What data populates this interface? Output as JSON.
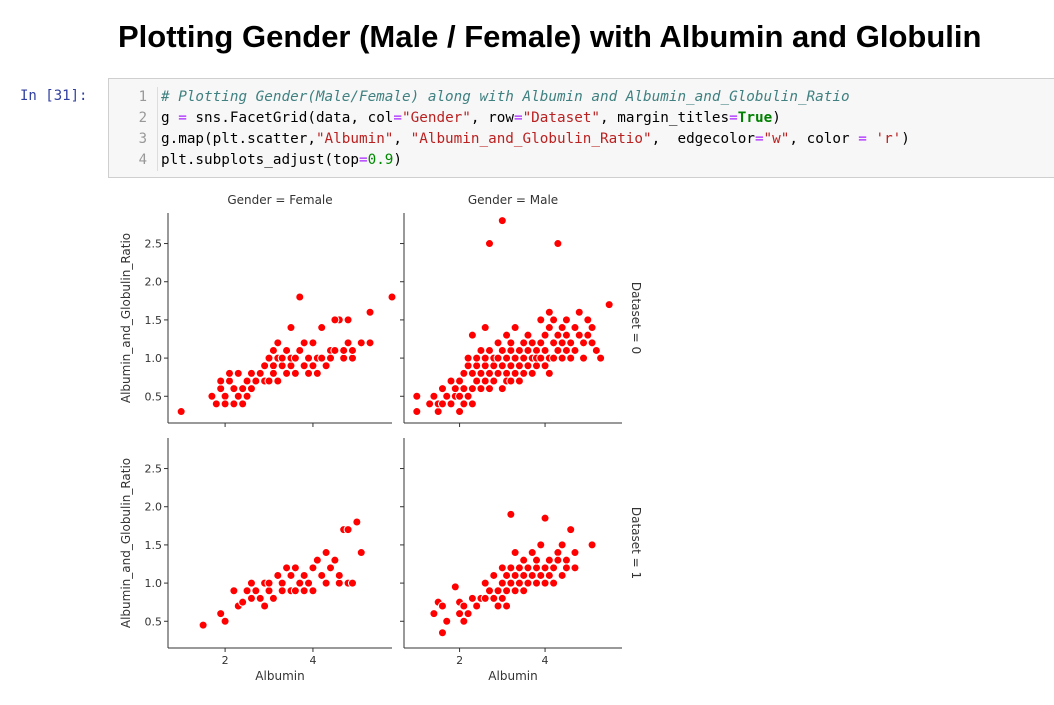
{
  "heading": "Plotting Gender (Male / Female) with Albumin and Globulin",
  "cell": {
    "prompt": "In [31]:",
    "line_numbers": [
      "1",
      "2",
      "3",
      "4"
    ],
    "code": {
      "l1": "# Plotting Gender(Male/Female) along with Albumin and Albumin_and_Globulin_Ratio",
      "l2": {
        "a": "g ",
        "b": "=",
        "c": " sns.FacetGrid(data, col",
        "d": "=",
        "e": "\"Gender\"",
        "f": ", row",
        "g": "=",
        "h": "\"Dataset\"",
        "i": ", margin_titles",
        "j": "=",
        "k": "True",
        "l": ")"
      },
      "l3": {
        "a": "g.map(plt.scatter,",
        "b": "\"Albumin\"",
        "c": ", ",
        "d": "\"Albumin_and_Globulin_Ratio\"",
        "e": ",  edgecolor",
        "f": "=",
        "g": "\"w\"",
        "h": ", color ",
        "i": "=",
        "j": " ",
        "k": "'r'",
        "l": ")"
      },
      "l4": {
        "a": "plt.subplots_adjust(top",
        "b": "=",
        "c": "0.9",
        "d": ")"
      }
    }
  },
  "chart_data": {
    "type": "scatter",
    "marker_color": "#ff0000",
    "edge_color": "#ffffff",
    "xlabel": "Albumin",
    "ylabel": "Albumin_and_Globulin_Ratio",
    "xlim": [
      0.7,
      5.8
    ],
    "ylim": [
      0.15,
      2.9
    ],
    "xticks": [
      "2",
      "4"
    ],
    "yticks": [
      "0.5",
      "1.0",
      "1.5",
      "2.0",
      "2.5"
    ],
    "col_titles": [
      "Gender = Female",
      "Gender = Male"
    ],
    "row_titles": [
      "Dataset = 0",
      "Dataset = 1"
    ],
    "panels": [
      {
        "row": 0,
        "col": 0,
        "points": [
          [
            1.0,
            0.3
          ],
          [
            1.7,
            0.5
          ],
          [
            1.8,
            0.4
          ],
          [
            1.9,
            0.6
          ],
          [
            1.9,
            0.7
          ],
          [
            2.0,
            0.5
          ],
          [
            2.0,
            0.4
          ],
          [
            2.1,
            0.7
          ],
          [
            2.1,
            0.8
          ],
          [
            2.2,
            0.4
          ],
          [
            2.2,
            0.6
          ],
          [
            2.3,
            0.8
          ],
          [
            2.3,
            0.5
          ],
          [
            2.4,
            0.4
          ],
          [
            2.4,
            0.6
          ],
          [
            2.5,
            0.7
          ],
          [
            2.5,
            0.5
          ],
          [
            2.6,
            0.6
          ],
          [
            2.6,
            0.8
          ],
          [
            2.7,
            0.7
          ],
          [
            2.8,
            0.8
          ],
          [
            2.9,
            0.7
          ],
          [
            2.9,
            0.9
          ],
          [
            3.0,
            1.0
          ],
          [
            3.0,
            0.7
          ],
          [
            3.1,
            0.9
          ],
          [
            3.1,
            1.1
          ],
          [
            3.1,
            0.8
          ],
          [
            3.2,
            0.7
          ],
          [
            3.2,
            1.2
          ],
          [
            3.2,
            1.0
          ],
          [
            3.3,
            0.9
          ],
          [
            3.3,
            1.0
          ],
          [
            3.4,
            0.8
          ],
          [
            3.4,
            1.1
          ],
          [
            3.5,
            0.9
          ],
          [
            3.5,
            1.4
          ],
          [
            3.5,
            1.0
          ],
          [
            3.6,
            1.0
          ],
          [
            3.6,
            0.8
          ],
          [
            3.7,
            1.8
          ],
          [
            3.7,
            1.1
          ],
          [
            3.8,
            0.9
          ],
          [
            3.8,
            1.2
          ],
          [
            3.9,
            1.0
          ],
          [
            3.9,
            0.8
          ],
          [
            4.0,
            1.2
          ],
          [
            4.0,
            0.9
          ],
          [
            4.1,
            1.0
          ],
          [
            4.1,
            0.8
          ],
          [
            4.2,
            1.4
          ],
          [
            4.2,
            1.0
          ],
          [
            4.3,
            0.9
          ],
          [
            4.4,
            1.1
          ],
          [
            4.4,
            1.0
          ],
          [
            4.5,
            1.1
          ],
          [
            4.6,
            1.5
          ],
          [
            4.5,
            1.5
          ],
          [
            4.7,
            1.0
          ],
          [
            4.7,
            1.1
          ],
          [
            4.8,
            1.5
          ],
          [
            4.8,
            1.2
          ],
          [
            4.9,
            1.0
          ],
          [
            4.9,
            1.1
          ],
          [
            5.1,
            1.2
          ],
          [
            5.3,
            1.2
          ],
          [
            5.3,
            1.6
          ],
          [
            5.8,
            1.8
          ]
        ]
      },
      {
        "row": 0,
        "col": 1,
        "points": [
          [
            1.0,
            0.5
          ],
          [
            1.0,
            0.3
          ],
          [
            1.3,
            0.4
          ],
          [
            1.4,
            0.5
          ],
          [
            1.5,
            0.3
          ],
          [
            1.5,
            0.4
          ],
          [
            1.6,
            0.6
          ],
          [
            1.6,
            0.4
          ],
          [
            1.7,
            0.5
          ],
          [
            1.8,
            0.7
          ],
          [
            1.8,
            0.4
          ],
          [
            1.9,
            0.5
          ],
          [
            1.9,
            0.6
          ],
          [
            2.0,
            0.3
          ],
          [
            2.0,
            0.5
          ],
          [
            2.0,
            0.7
          ],
          [
            2.1,
            0.6
          ],
          [
            2.1,
            0.4
          ],
          [
            2.1,
            0.8
          ],
          [
            2.2,
            0.5
          ],
          [
            2.2,
            0.9
          ],
          [
            2.2,
            1.0
          ],
          [
            2.3,
            0.6
          ],
          [
            2.3,
            0.8
          ],
          [
            2.3,
            1.3
          ],
          [
            2.3,
            0.4
          ],
          [
            2.4,
            0.7
          ],
          [
            2.4,
            0.9
          ],
          [
            2.4,
            1.0
          ],
          [
            2.5,
            0.6
          ],
          [
            2.5,
            0.8
          ],
          [
            2.5,
            1.1
          ],
          [
            2.6,
            0.7
          ],
          [
            2.6,
            0.9
          ],
          [
            2.6,
            1.0
          ],
          [
            2.6,
            1.4
          ],
          [
            2.7,
            0.8
          ],
          [
            2.7,
            1.1
          ],
          [
            2.7,
            0.6
          ],
          [
            2.7,
            2.5
          ],
          [
            2.8,
            0.9
          ],
          [
            2.8,
            1.0
          ],
          [
            2.8,
            0.7
          ],
          [
            2.9,
            1.2
          ],
          [
            2.9,
            0.8
          ],
          [
            2.9,
            1.0
          ],
          [
            3.0,
            0.9
          ],
          [
            3.0,
            1.1
          ],
          [
            3.0,
            0.6
          ],
          [
            3.0,
            2.8
          ],
          [
            3.1,
            1.0
          ],
          [
            3.1,
            0.8
          ],
          [
            3.1,
            1.3
          ],
          [
            3.1,
            0.7
          ],
          [
            3.2,
            0.9
          ],
          [
            3.2,
            1.1
          ],
          [
            3.2,
            1.2
          ],
          [
            3.2,
            0.7
          ],
          [
            3.3,
            1.0
          ],
          [
            3.3,
            0.8
          ],
          [
            3.3,
            1.4
          ],
          [
            3.4,
            0.9
          ],
          [
            3.4,
            1.1
          ],
          [
            3.4,
            0.7
          ],
          [
            3.5,
            1.0
          ],
          [
            3.5,
            1.2
          ],
          [
            3.5,
            0.8
          ],
          [
            3.6,
            1.1
          ],
          [
            3.6,
            0.9
          ],
          [
            3.6,
            1.3
          ],
          [
            3.7,
            1.0
          ],
          [
            3.7,
            0.8
          ],
          [
            3.7,
            1.2
          ],
          [
            3.8,
            1.1
          ],
          [
            3.8,
            0.9
          ],
          [
            3.8,
            1.0
          ],
          [
            3.9,
            1.5
          ],
          [
            3.9,
            1.2
          ],
          [
            3.9,
            1.0
          ],
          [
            4.0,
            1.3
          ],
          [
            4.0,
            1.1
          ],
          [
            4.0,
            0.9
          ],
          [
            4.1,
            1.4
          ],
          [
            4.1,
            1.0
          ],
          [
            4.1,
            0.8
          ],
          [
            4.1,
            1.6
          ],
          [
            4.2,
            1.2
          ],
          [
            4.2,
            1.5
          ],
          [
            4.2,
            1.0
          ],
          [
            4.3,
            1.3
          ],
          [
            4.3,
            1.1
          ],
          [
            4.3,
            2.5
          ],
          [
            4.4,
            1.4
          ],
          [
            4.4,
            1.0
          ],
          [
            4.4,
            1.2
          ],
          [
            4.5,
            1.5
          ],
          [
            4.5,
            1.1
          ],
          [
            4.5,
            1.3
          ],
          [
            4.6,
            1.2
          ],
          [
            4.6,
            1.0
          ],
          [
            4.7,
            1.4
          ],
          [
            4.7,
            1.1
          ],
          [
            4.8,
            1.3
          ],
          [
            4.8,
            1.6
          ],
          [
            4.9,
            1.2
          ],
          [
            4.9,
            1.0
          ],
          [
            5.0,
            1.5
          ],
          [
            5.0,
            1.3
          ],
          [
            5.1,
            1.4
          ],
          [
            5.1,
            1.2
          ],
          [
            5.2,
            1.1
          ],
          [
            5.3,
            1.0
          ],
          [
            5.5,
            1.7
          ]
        ]
      },
      {
        "row": 1,
        "col": 0,
        "points": [
          [
            1.5,
            0.45
          ],
          [
            1.9,
            0.6
          ],
          [
            2.0,
            0.5
          ],
          [
            2.2,
            0.9
          ],
          [
            2.3,
            0.7
          ],
          [
            2.4,
            0.75
          ],
          [
            2.5,
            0.9
          ],
          [
            2.6,
            1.0
          ],
          [
            2.6,
            0.8
          ],
          [
            2.7,
            0.9
          ],
          [
            2.8,
            0.8
          ],
          [
            2.9,
            1.0
          ],
          [
            2.9,
            0.7
          ],
          [
            3.0,
            0.9
          ],
          [
            3.0,
            1.0
          ],
          [
            3.1,
            0.8
          ],
          [
            3.2,
            1.1
          ],
          [
            3.3,
            1.0
          ],
          [
            3.3,
            0.9
          ],
          [
            3.4,
            1.2
          ],
          [
            3.5,
            1.1
          ],
          [
            3.5,
            0.9
          ],
          [
            3.6,
            1.2
          ],
          [
            3.6,
            0.9
          ],
          [
            3.7,
            1.0
          ],
          [
            3.8,
            1.1
          ],
          [
            3.8,
            0.9
          ],
          [
            3.9,
            1.0
          ],
          [
            4.0,
            1.2
          ],
          [
            4.0,
            0.9
          ],
          [
            4.1,
            1.3
          ],
          [
            4.2,
            1.1
          ],
          [
            4.3,
            1.0
          ],
          [
            4.3,
            1.4
          ],
          [
            4.4,
            1.2
          ],
          [
            4.5,
            1.3
          ],
          [
            4.6,
            1.0
          ],
          [
            4.6,
            1.1
          ],
          [
            4.7,
            1.7
          ],
          [
            4.8,
            1.7
          ],
          [
            4.8,
            1.0
          ],
          [
            4.9,
            1.0
          ],
          [
            5.0,
            1.8
          ],
          [
            5.1,
            1.4
          ]
        ]
      },
      {
        "row": 1,
        "col": 1,
        "points": [
          [
            1.4,
            0.6
          ],
          [
            1.5,
            0.75
          ],
          [
            1.6,
            0.35
          ],
          [
            1.6,
            0.7
          ],
          [
            1.7,
            0.5
          ],
          [
            1.9,
            0.95
          ],
          [
            2.0,
            0.6
          ],
          [
            2.0,
            0.75
          ],
          [
            2.1,
            0.5
          ],
          [
            2.1,
            0.7
          ],
          [
            2.2,
            0.6
          ],
          [
            2.3,
            0.8
          ],
          [
            2.4,
            0.7
          ],
          [
            2.5,
            0.8
          ],
          [
            2.6,
            0.8
          ],
          [
            2.6,
            1.0
          ],
          [
            2.7,
            0.9
          ],
          [
            2.8,
            0.8
          ],
          [
            2.8,
            1.1
          ],
          [
            2.9,
            0.7
          ],
          [
            2.9,
            0.9
          ],
          [
            3.0,
            1.0
          ],
          [
            3.0,
            0.8
          ],
          [
            3.0,
            1.2
          ],
          [
            3.1,
            1.1
          ],
          [
            3.1,
            0.9
          ],
          [
            3.1,
            0.7
          ],
          [
            3.2,
            1.0
          ],
          [
            3.2,
            1.2
          ],
          [
            3.2,
            1.9
          ],
          [
            3.3,
            0.9
          ],
          [
            3.3,
            1.1
          ],
          [
            3.3,
            1.4
          ],
          [
            3.4,
            1.0
          ],
          [
            3.4,
            1.2
          ],
          [
            3.5,
            1.1
          ],
          [
            3.5,
            0.9
          ],
          [
            3.5,
            1.3
          ],
          [
            3.6,
            1.0
          ],
          [
            3.6,
            1.2
          ],
          [
            3.7,
            1.1
          ],
          [
            3.7,
            1.4
          ],
          [
            3.8,
            1.0
          ],
          [
            3.8,
            1.2
          ],
          [
            3.8,
            1.3
          ],
          [
            3.9,
            1.5
          ],
          [
            3.9,
            1.1
          ],
          [
            4.0,
            1.0
          ],
          [
            4.0,
            1.2
          ],
          [
            4.0,
            1.85
          ],
          [
            4.1,
            1.3
          ],
          [
            4.1,
            1.1
          ],
          [
            4.2,
            1.2
          ],
          [
            4.2,
            1.0
          ],
          [
            4.3,
            1.4
          ],
          [
            4.3,
            1.3
          ],
          [
            4.4,
            1.1
          ],
          [
            4.4,
            1.5
          ],
          [
            4.5,
            1.3
          ],
          [
            4.5,
            1.2
          ],
          [
            4.6,
            1.7
          ],
          [
            4.7,
            1.2
          ],
          [
            4.7,
            1.4
          ],
          [
            5.1,
            1.5
          ]
        ]
      }
    ]
  }
}
